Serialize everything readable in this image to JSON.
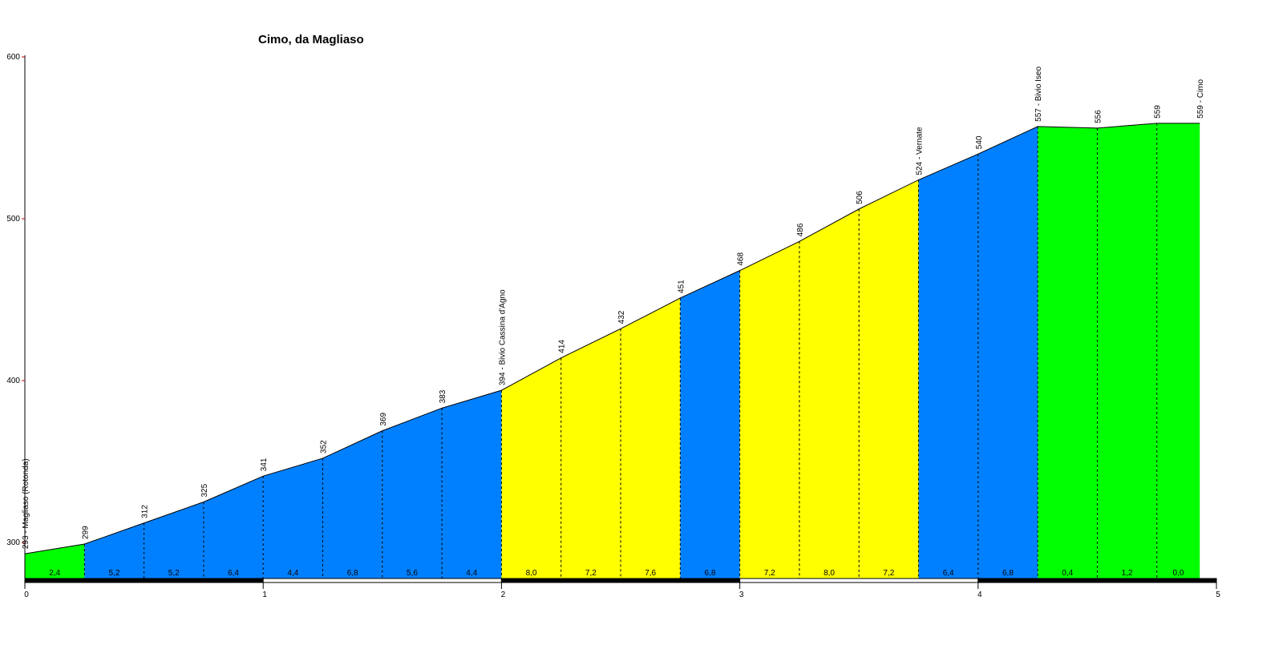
{
  "chart_data": {
    "type": "area",
    "title": "Cimo, da Magliaso",
    "xlabel": "",
    "ylabel": "",
    "xlim": [
      0,
      5
    ],
    "ylim": [
      278,
      600
    ],
    "x_ticks": [
      "0",
      "1",
      "2",
      "3",
      "4",
      "5"
    ],
    "y_ticks": [
      "300",
      "400",
      "500",
      "600"
    ],
    "points": [
      {
        "x": 0.0,
        "y": 293,
        "label": "293 - Magliaso (Rotonda)"
      },
      {
        "x": 0.25,
        "y": 299,
        "label": "299"
      },
      {
        "x": 0.5,
        "y": 312,
        "label": "312"
      },
      {
        "x": 0.75,
        "y": 325,
        "label": "325"
      },
      {
        "x": 1.0,
        "y": 341,
        "label": "341"
      },
      {
        "x": 1.25,
        "y": 352,
        "label": "352"
      },
      {
        "x": 1.5,
        "y": 369,
        "label": "369"
      },
      {
        "x": 1.75,
        "y": 383,
        "label": "383"
      },
      {
        "x": 2.0,
        "y": 394,
        "label": "394 - Bivio Cassina d'Agno"
      },
      {
        "x": 2.25,
        "y": 414,
        "label": "414"
      },
      {
        "x": 2.5,
        "y": 432,
        "label": "432"
      },
      {
        "x": 2.75,
        "y": 451,
        "label": "451"
      },
      {
        "x": 3.0,
        "y": 468,
        "label": "468"
      },
      {
        "x": 3.25,
        "y": 486,
        "label": "486"
      },
      {
        "x": 3.5,
        "y": 506,
        "label": "506"
      },
      {
        "x": 3.75,
        "y": 524,
        "label": "524 - Vernate"
      },
      {
        "x": 4.0,
        "y": 540,
        "label": "540"
      },
      {
        "x": 4.25,
        "y": 557,
        "label": "557 - Bivio Iseo"
      },
      {
        "x": 4.5,
        "y": 556,
        "label": "556"
      },
      {
        "x": 4.75,
        "y": 559,
        "label": "559"
      },
      {
        "x": 4.93,
        "y": 559,
        "label": "559 - Cimo"
      }
    ],
    "segments": [
      {
        "grade": "2,4",
        "color": "#00ff00"
      },
      {
        "grade": "5,2",
        "color": "#0080ff"
      },
      {
        "grade": "5,2",
        "color": "#0080ff"
      },
      {
        "grade": "6,4",
        "color": "#0080ff"
      },
      {
        "grade": "4,4",
        "color": "#0080ff"
      },
      {
        "grade": "6,8",
        "color": "#0080ff"
      },
      {
        "grade": "5,6",
        "color": "#0080ff"
      },
      {
        "grade": "4,4",
        "color": "#0080ff"
      },
      {
        "grade": "8,0",
        "color": "#ffff00"
      },
      {
        "grade": "7,2",
        "color": "#ffff00"
      },
      {
        "grade": "7,6",
        "color": "#ffff00"
      },
      {
        "grade": "6,8",
        "color": "#0080ff"
      },
      {
        "grade": "7,2",
        "color": "#ffff00"
      },
      {
        "grade": "8,0",
        "color": "#ffff00"
      },
      {
        "grade": "7,2",
        "color": "#ffff00"
      },
      {
        "grade": "6,4",
        "color": "#0080ff"
      },
      {
        "grade": "6,8",
        "color": "#0080ff"
      },
      {
        "grade": "0,4",
        "color": "#00ff00"
      },
      {
        "grade": "1,2",
        "color": "#00ff00"
      },
      {
        "grade": "0,0",
        "color": "#00ff00"
      }
    ]
  }
}
